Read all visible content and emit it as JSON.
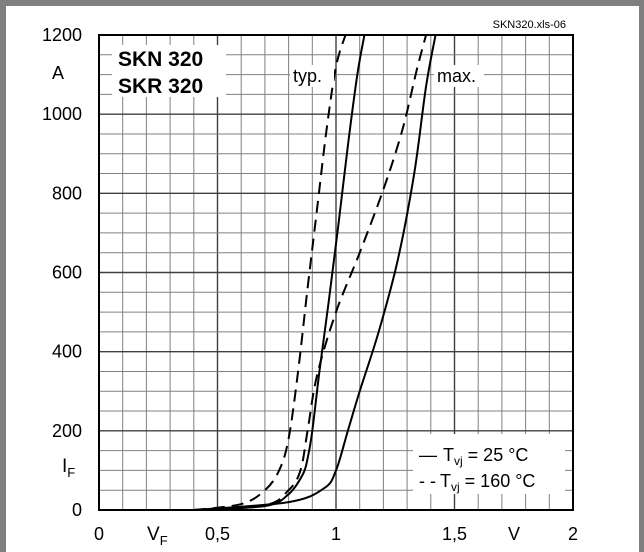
{
  "file_tag": "SKN320.xls-06",
  "title_lines": [
    "SKN 320",
    "SKR 320"
  ],
  "chart_data": {
    "type": "line",
    "xlabel": "V",
    "ylabel": "A",
    "x_quantity": "V",
    "x_quantity_sub": "F",
    "y_quantity": "I",
    "y_quantity_sub": "F",
    "xlim": [
      0,
      2
    ],
    "ylim": [
      0,
      1200
    ],
    "x_ticks": [
      "0",
      "0,5",
      "1",
      "1,5",
      "2"
    ],
    "x_tick_values": [
      0,
      0.5,
      1,
      1.5,
      2
    ],
    "y_ticks": [
      "0",
      "200",
      "400",
      "600",
      "800",
      "1000",
      "1200"
    ],
    "y_tick_values": [
      0,
      200,
      400,
      600,
      800,
      1000,
      1200
    ],
    "grid": true,
    "annotations": [
      "typ.",
      "max."
    ],
    "legend_position": "bottom-right",
    "legend": [
      {
        "symbol": "—",
        "T": "T",
        "sub": "vj",
        "text": " =   25 °C",
        "dash": "solid"
      },
      {
        "symbol": "- -",
        "T": "T",
        "sub": "vj",
        "text": " = 160 °C",
        "dash": "dashed"
      }
    ],
    "series": [
      {
        "dash": "dashed",
        "x": [
          0.4,
          0.6,
          0.7,
          0.76,
          0.8,
          0.84,
          0.88,
          0.92,
          0.96,
          1.0,
          1.04
        ],
        "y": [
          0,
          15,
          50,
          100,
          180,
          350,
          560,
          760,
          960,
          1120,
          1200
        ]
      },
      {
        "dash": "solid",
        "x": [
          0.4,
          0.7,
          0.8,
          0.86,
          0.88,
          0.9,
          0.93,
          0.97,
          1.01,
          1.05,
          1.09,
          1.12
        ],
        "y": [
          0,
          10,
          40,
          90,
          130,
          200,
          350,
          530,
          720,
          920,
          1100,
          1200
        ]
      },
      {
        "dash": "dashed",
        "x": [
          0.4,
          0.7,
          0.8,
          0.85,
          0.88,
          0.92,
          1.0,
          1.1,
          1.2,
          1.28,
          1.34,
          1.38
        ],
        "y": [
          0,
          12,
          50,
          100,
          200,
          340,
          500,
          650,
          810,
          960,
          1110,
          1200
        ]
      },
      {
        "dash": "solid",
        "x": [
          0.4,
          0.8,
          0.95,
          1.0,
          1.05,
          1.1,
          1.18,
          1.26,
          1.33,
          1.38,
          1.42
        ],
        "y": [
          0,
          20,
          55,
          100,
          200,
          300,
          450,
          630,
          850,
          1070,
          1200
        ]
      }
    ]
  }
}
